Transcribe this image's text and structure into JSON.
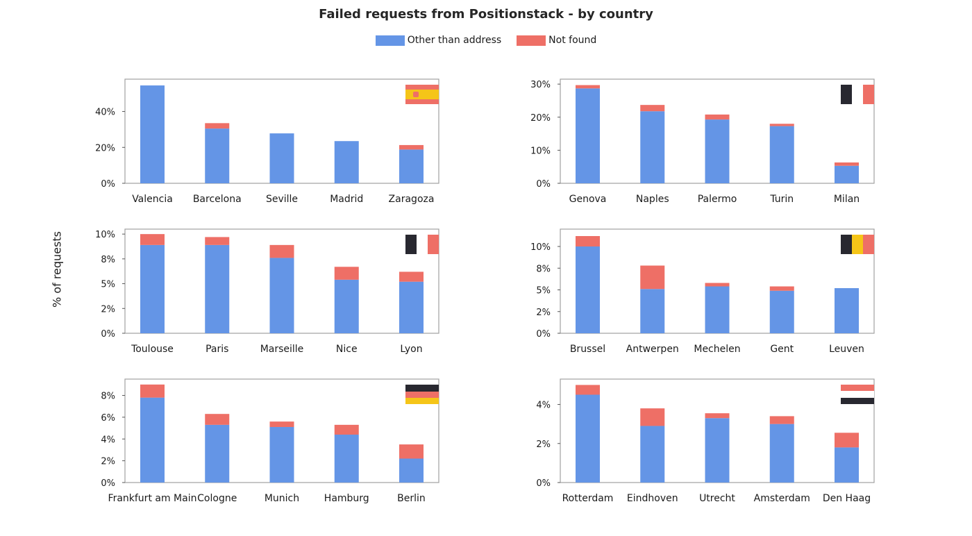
{
  "title": "Failed requests from Positionstack - by country",
  "ylabel": "% of requests",
  "legend": [
    {
      "label": "Other than address",
      "color": "#6495e6"
    },
    {
      "label": "Not found",
      "color": "#ee6f66"
    }
  ],
  "colors": {
    "other": "#6495e6",
    "notfound": "#ee6f66",
    "axis": "#a0a0a0",
    "flag_dark": "#282830",
    "flag_red": "#ee6f66",
    "flag_yellow": "#f5c518",
    "flag_white": "#ffffff"
  },
  "chart_data": [
    {
      "type": "bar",
      "stacked": true,
      "country": "Spain",
      "flag_icon": "spain-flag-icon",
      "categories": [
        "Valencia",
        "Barcelona",
        "Seville",
        "Madrid",
        "Zaragoza"
      ],
      "series": [
        {
          "name": "Other than address",
          "values": [
            54.5,
            30.5,
            27.8,
            23.5,
            18.8
          ]
        },
        {
          "name": "Not found",
          "values": [
            0,
            3.0,
            0,
            0,
            2.5
          ]
        }
      ],
      "ylim": [
        0,
        58
      ],
      "ticks": [
        0,
        20,
        40
      ],
      "tick_labels": [
        "0%",
        "20%",
        "40%"
      ]
    },
    {
      "type": "bar",
      "stacked": true,
      "country": "Italy",
      "flag_icon": "italy-flag-icon",
      "categories": [
        "Genova",
        "Naples",
        "Palermo",
        "Turin",
        "Milan"
      ],
      "series": [
        {
          "name": "Other than address",
          "values": [
            28.7,
            21.8,
            19.3,
            17.3,
            5.3
          ]
        },
        {
          "name": "Not found",
          "values": [
            1.0,
            1.9,
            1.5,
            0.7,
            1.0
          ]
        }
      ],
      "ylim": [
        0,
        31.5
      ],
      "ticks": [
        0,
        10,
        20,
        30
      ],
      "tick_labels": [
        "0%",
        "10%",
        "20%",
        "30%"
      ]
    },
    {
      "type": "bar",
      "stacked": true,
      "country": "France",
      "flag_icon": "france-flag-icon",
      "categories": [
        "Toulouse",
        "Paris",
        "Marseille",
        "Nice",
        "Lyon"
      ],
      "series": [
        {
          "name": "Other than address",
          "values": [
            8.9,
            8.9,
            7.6,
            5.4,
            5.2
          ]
        },
        {
          "name": "Not found",
          "values": [
            1.1,
            0.8,
            1.3,
            1.3,
            1.0
          ]
        }
      ],
      "ylim": [
        0,
        10.5
      ],
      "ticks": [
        0,
        2.5,
        5,
        7.5,
        10
      ],
      "tick_labels": [
        "0%",
        "2%",
        "5%",
        "8%",
        "10%"
      ]
    },
    {
      "type": "bar",
      "stacked": true,
      "country": "Belgium",
      "flag_icon": "belgium-flag-icon",
      "categories": [
        "Brussel",
        "Antwerpen",
        "Mechelen",
        "Gent",
        "Leuven"
      ],
      "series": [
        {
          "name": "Other than address",
          "values": [
            10.0,
            5.1,
            5.4,
            4.9,
            5.2
          ]
        },
        {
          "name": "Not found",
          "values": [
            1.2,
            2.7,
            0.4,
            0.5,
            0
          ]
        }
      ],
      "ylim": [
        0,
        12
      ],
      "ticks": [
        0,
        2.5,
        5,
        7.5,
        10
      ],
      "tick_labels": [
        "0%",
        "2%",
        "5%",
        "8%",
        "10%"
      ]
    },
    {
      "type": "bar",
      "stacked": true,
      "country": "Germany",
      "flag_icon": "germany-flag-icon",
      "categories": [
        "Frankfurt am Main",
        "Cologne",
        "Munich",
        "Hamburg",
        "Berlin"
      ],
      "series": [
        {
          "name": "Other than address",
          "values": [
            7.8,
            5.3,
            5.1,
            4.4,
            2.2
          ]
        },
        {
          "name": "Not found",
          "values": [
            1.2,
            1.0,
            0.5,
            0.9,
            1.3
          ]
        }
      ],
      "ylim": [
        0,
        9.5
      ],
      "ticks": [
        0,
        2,
        4,
        6,
        8
      ],
      "tick_labels": [
        "0%",
        "2%",
        "4%",
        "6%",
        "8%"
      ]
    },
    {
      "type": "bar",
      "stacked": true,
      "country": "Netherlands",
      "flag_icon": "netherlands-flag-icon",
      "categories": [
        "Rotterdam",
        "Eindhoven",
        "Utrecht",
        "Amsterdam",
        "Den Haag"
      ],
      "series": [
        {
          "name": "Other than address",
          "values": [
            4.5,
            2.9,
            3.3,
            3.0,
            1.8
          ]
        },
        {
          "name": "Not found",
          "values": [
            0.5,
            0.9,
            0.25,
            0.4,
            0.75
          ]
        }
      ],
      "ylim": [
        0,
        5.3
      ],
      "ticks": [
        0,
        2,
        4
      ],
      "tick_labels": [
        "0%",
        "2%",
        "4%"
      ]
    }
  ]
}
